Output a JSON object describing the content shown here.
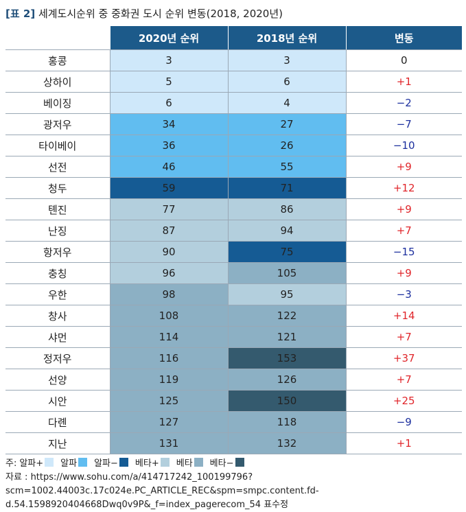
{
  "title": {
    "tag": "[표 2]",
    "text": "세계도시순위 중 중화권 도시 순위 변동(2018, 2020년)"
  },
  "table": {
    "headers": [
      "",
      "2020년 순위",
      "2018년 순위",
      "변동"
    ],
    "rows": [
      {
        "city": "홍콩",
        "r2020": "3",
        "r2018": "3",
        "change": "0"
      },
      {
        "city": "상하이",
        "r2020": "5",
        "r2018": "6",
        "change": "+1"
      },
      {
        "city": "베이징",
        "r2020": "6",
        "r2018": "4",
        "change": "−2"
      },
      {
        "city": "광저우",
        "r2020": "34",
        "r2018": "27",
        "change": "−7"
      },
      {
        "city": "타이베이",
        "r2020": "36",
        "r2018": "26",
        "change": "−10"
      },
      {
        "city": "선전",
        "r2020": "46",
        "r2018": "55",
        "change": "+9"
      },
      {
        "city": "청두",
        "r2020": "59",
        "r2018": "71",
        "change": "+12"
      },
      {
        "city": "톈진",
        "r2020": "77",
        "r2018": "86",
        "change": "+9"
      },
      {
        "city": "난징",
        "r2020": "87",
        "r2018": "94",
        "change": "+7"
      },
      {
        "city": "항저우",
        "r2020": "90",
        "r2018": "75",
        "change": "−15"
      },
      {
        "city": "충칭",
        "r2020": "96",
        "r2018": "105",
        "change": "+9"
      },
      {
        "city": "우한",
        "r2020": "98",
        "r2018": "95",
        "change": "−3"
      },
      {
        "city": "창사",
        "r2020": "108",
        "r2018": "122",
        "change": "+14"
      },
      {
        "city": "샤먼",
        "r2020": "114",
        "r2018": "121",
        "change": "+7"
      },
      {
        "city": "정저우",
        "r2020": "116",
        "r2018": "153",
        "change": "+37"
      },
      {
        "city": "선양",
        "r2020": "119",
        "r2018": "126",
        "change": "+7"
      },
      {
        "city": "시안",
        "r2020": "125",
        "r2018": "150",
        "change": "+25"
      },
      {
        "city": "다롄",
        "r2020": "127",
        "r2018": "118",
        "change": "−9"
      },
      {
        "city": "지난",
        "r2020": "131",
        "r2018": "132",
        "change": "+1"
      }
    ]
  },
  "legend": {
    "prefix": "주:",
    "items": [
      {
        "label": "알파+",
        "color": "#cfe8fa"
      },
      {
        "label": "알파",
        "color": "#61bdf0"
      },
      {
        "label": "알파−",
        "color": "#155b94"
      },
      {
        "label": "베타+",
        "color": "#b3cfdd"
      },
      {
        "label": "베타",
        "color": "#8cb0c4"
      },
      {
        "label": "베타−",
        "color": "#345a6e"
      }
    ]
  },
  "source": "자료 : https://www.sohu.com/a/414717242_100199796?scm=1002.44003c.17c024e.PC_ARTICLE_REC&spm=smpc.content.fd-d.54.1598920404668Dwq0v9P&_f=index_pagerecom_54 표수정"
}
